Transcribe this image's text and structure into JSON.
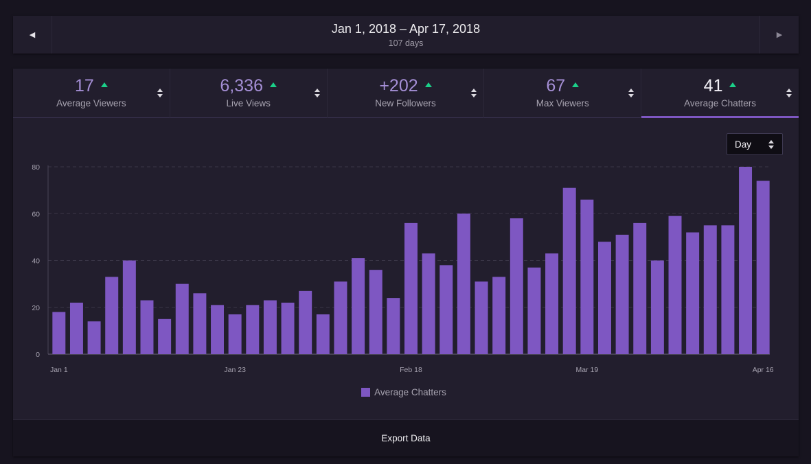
{
  "date_bar": {
    "prev_icon": "triangle-left-icon",
    "prev_glyph": "◀",
    "next_icon": "triangle-right-icon",
    "next_glyph": "▶",
    "range": "Jan 1, 2018 – Apr 17, 2018",
    "days": "107 days"
  },
  "stats": [
    {
      "value": "17",
      "label": "Average Viewers",
      "trend": "up"
    },
    {
      "value": "6,336",
      "label": "Live Views",
      "trend": "up"
    },
    {
      "value": "+202",
      "label": "New Followers",
      "trend": "up"
    },
    {
      "value": "67",
      "label": "Max Viewers",
      "trend": "up"
    },
    {
      "value": "41",
      "label": "Average Chatters",
      "trend": "up",
      "active": true
    }
  ],
  "granularity": {
    "selected": "Day"
  },
  "colors": {
    "accent": "#7e57c2",
    "trend_up": "#1bd089",
    "background": "#17141f",
    "panel": "#221e2d"
  },
  "chart_data": {
    "type": "bar",
    "title": "",
    "xlabel": "",
    "ylabel": "",
    "ylim": [
      0,
      80
    ],
    "yticks": [
      0,
      20,
      40,
      60,
      80
    ],
    "xtick_labels": [
      {
        "index": 0,
        "label": "Jan 1"
      },
      {
        "index": 10,
        "label": "Jan 23"
      },
      {
        "index": 20,
        "label": "Feb 18"
      },
      {
        "index": 30,
        "label": "Mar 19"
      },
      {
        "index": 40,
        "label": "Apr 16"
      }
    ],
    "grid": true,
    "legend": "bottom-center",
    "series": [
      {
        "name": "Average Chatters",
        "color": "#7e57c2",
        "values": [
          18,
          22,
          14,
          33,
          40,
          23,
          15,
          30,
          26,
          21,
          17,
          21,
          23,
          22,
          27,
          17,
          31,
          41,
          36,
          24,
          56,
          43,
          38,
          60,
          31,
          33,
          58,
          37,
          43,
          71,
          66,
          48,
          51,
          56,
          40,
          59,
          52,
          55,
          55,
          80,
          74
        ]
      }
    ]
  },
  "footer": {
    "export_label": "Export Data"
  }
}
